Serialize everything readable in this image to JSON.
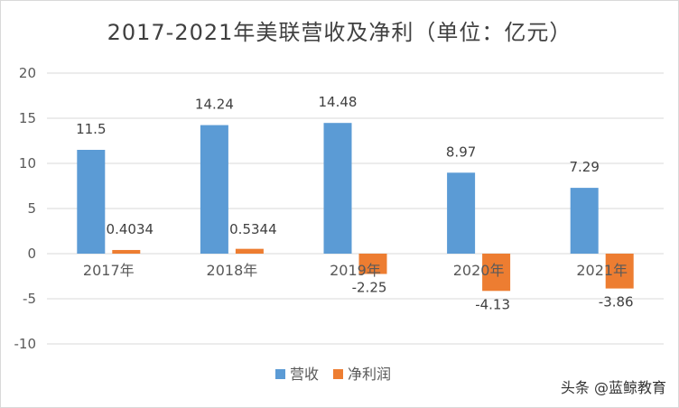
{
  "chart_data": {
    "type": "bar",
    "title": "2017-2021年美联营收及净利（单位：亿元）",
    "categories": [
      "2017年",
      "2018年",
      "2019年",
      "2020年",
      "2021年"
    ],
    "series": [
      {
        "name": "营收",
        "color": "#5b9bd5",
        "values": [
          11.5,
          14.24,
          14.48,
          8.97,
          7.29
        ],
        "labels": [
          "11.5",
          "14.24",
          "14.48",
          "8.97",
          "7.29"
        ]
      },
      {
        "name": "净利润",
        "color": "#ed7d31",
        "values": [
          0.4034,
          0.5344,
          -2.25,
          -4.13,
          -3.86
        ],
        "labels": [
          "0.4034",
          "0.5344",
          "-2.25",
          "-4.13",
          "-3.86"
        ]
      }
    ],
    "y_ticks": [
      20,
      15,
      10,
      5,
      0,
      -5,
      -10
    ],
    "ylim": [
      -10,
      20
    ],
    "grid": true,
    "legend_position": "bottom",
    "gridline_color": "#d9d9d9"
  },
  "watermark": "头条 @蓝鲸教育"
}
